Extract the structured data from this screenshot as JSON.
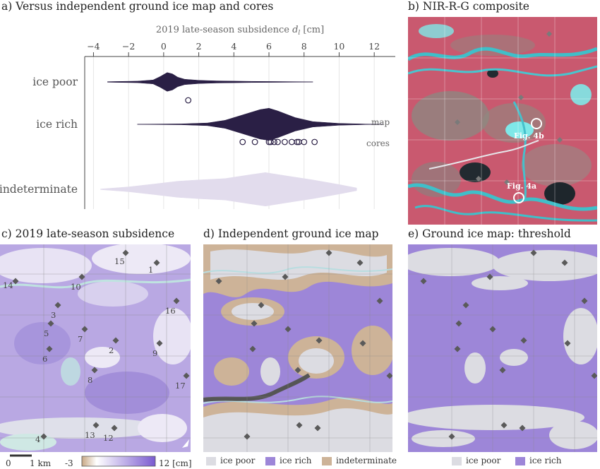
{
  "titles": {
    "a": "a) Versus independent ground ice map and cores",
    "b": "b) NIR-R-G composite",
    "c": "c) 2019 late-season subsidence",
    "d": "d) Independent ground ice map",
    "e": "e) Ground ice map: threshold"
  },
  "chart_data": {
    "type": "violin",
    "xlabel": "2019 late-season subsidence",
    "xlabel_symbol": "d",
    "xlabel_sub": "l",
    "xlabel_unit": "[cm]",
    "xlim": [
      -4.5,
      13.2
    ],
    "xticks": [
      -4,
      -2,
      0,
      2,
      4,
      6,
      8,
      10,
      12
    ],
    "xtick_labels": [
      "−4",
      "−2",
      "0",
      "2",
      "4",
      "6",
      "8",
      "10",
      "12"
    ],
    "grid": true,
    "categories": [
      "ice poor",
      "ice rich",
      "indeterminate"
    ],
    "violins": [
      {
        "category": "ice poor",
        "color": "#2a1f45",
        "profile": [
          [
            -3.2,
            0.2
          ],
          [
            -1.5,
            0.6
          ],
          [
            -0.6,
            1.5
          ],
          [
            -0.2,
            4
          ],
          [
            0.2,
            7
          ],
          [
            0.5,
            6
          ],
          [
            0.8,
            3.5
          ],
          [
            1.2,
            2
          ],
          [
            2,
            1.2
          ],
          [
            3,
            0.8
          ],
          [
            5,
            0.4
          ],
          [
            8.5,
            0.1
          ]
        ]
      },
      {
        "category": "ice rich",
        "color": "#2a1f45",
        "profile": [
          [
            -1.5,
            0.1
          ],
          [
            1,
            0.3
          ],
          [
            2.5,
            1
          ],
          [
            3.5,
            3
          ],
          [
            4.5,
            7
          ],
          [
            5.5,
            11
          ],
          [
            6,
            12
          ],
          [
            6.5,
            10
          ],
          [
            7.5,
            5
          ],
          [
            8.5,
            2
          ],
          [
            10,
            0.7
          ],
          [
            11.5,
            0.2
          ],
          [
            12.5,
            0.05
          ]
        ]
      },
      {
        "category": "indeterminate",
        "color": "#e2dced",
        "profile": [
          [
            -3.6,
            0.2
          ],
          [
            -2,
            1.8
          ],
          [
            -0.5,
            4
          ],
          [
            0.8,
            6
          ],
          [
            2,
            7
          ],
          [
            3.5,
            8
          ],
          [
            5,
            11
          ],
          [
            5.8,
            12.5
          ],
          [
            7,
            10
          ],
          [
            8.5,
            7
          ],
          [
            10,
            3.5
          ],
          [
            11,
            1
          ]
        ]
      }
    ],
    "annotations": [
      "map",
      "cores"
    ],
    "cores": {
      "ice poor": [
        1.4
      ],
      "ice rich": [
        4.5,
        5.2,
        6.0,
        6.1,
        6.3,
        6.5,
        6.9,
        7.3,
        7.6,
        7.7,
        8.0,
        8.6
      ]
    }
  },
  "panel_b": {
    "labels": [
      "Fig. 4b",
      "Fig. 4a"
    ],
    "colors": {
      "vegetation": "#c9596f",
      "water": "#7fe8e8",
      "dark": "#222a30"
    }
  },
  "panel_c": {
    "site_labels": [
      "15",
      "1",
      "14",
      "10",
      "16",
      "3",
      "5",
      "7",
      "2",
      "6",
      "9",
      "8",
      "17",
      "13",
      "12",
      "4"
    ],
    "scalebar_label": "1 km",
    "scalebar_zero": "0",
    "colorbar_min": "-3",
    "colorbar_max": "12 [cm]",
    "colorbar_colors": [
      "#c8a885",
      "#ffffff",
      "#7a5bd0"
    ]
  },
  "panel_d": {
    "legend": [
      {
        "label": "ice poor",
        "color": "#dcdce2"
      },
      {
        "label": "ice rich",
        "color": "#9d86d8"
      },
      {
        "label": "indeterminate",
        "color": "#cdb398"
      }
    ]
  },
  "panel_e": {
    "legend": [
      {
        "label": "ice poor",
        "color": "#dcdce2"
      },
      {
        "label": "ice rich",
        "color": "#9d86d8"
      }
    ]
  }
}
